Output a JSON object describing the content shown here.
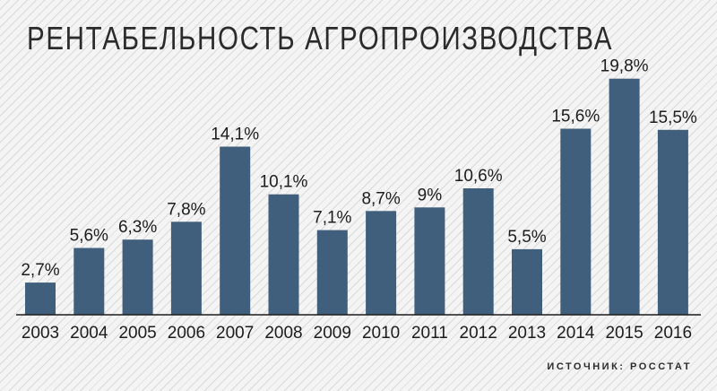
{
  "chart_data": {
    "type": "bar",
    "title": "РЕНТАБЕЛЬНОСТЬ АГРОПРОИЗВОДСТВА",
    "categories": [
      "2003",
      "2004",
      "2005",
      "2006",
      "2007",
      "2008",
      "2009",
      "2010",
      "2011",
      "2012",
      "2013",
      "2014",
      "2015",
      "2016"
    ],
    "values": [
      2.7,
      5.6,
      6.3,
      7.8,
      14.1,
      10.1,
      7.1,
      8.7,
      9,
      10.6,
      5.5,
      15.6,
      19.8,
      15.5
    ],
    "value_labels": [
      "2,7%",
      "5,6%",
      "6,3%",
      "7,8%",
      "14,1%",
      "10,1%",
      "7,1%",
      "8,7%",
      "9%",
      "10,6%",
      "5,5%",
      "15,6%",
      "19,8%",
      "15,5%"
    ],
    "xlabel": "",
    "ylabel": "",
    "ylim": [
      0,
      20
    ],
    "grid": false,
    "bar_color": "#3f5f7d"
  },
  "source": "ИСТОЧНИК: РОССТАТ"
}
